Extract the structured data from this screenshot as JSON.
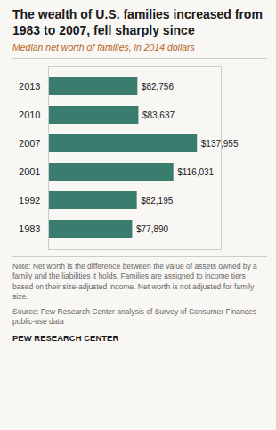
{
  "chart_data": {
    "type": "bar",
    "orientation": "horizontal",
    "title": "The wealth of U.S. families increased from 1983 to 2007, fell sharply since",
    "subtitle": "Median net worth of families, in 2014 dollars",
    "categories": [
      "2013",
      "2010",
      "2007",
      "2001",
      "1992",
      "1983"
    ],
    "values": [
      82756,
      83637,
      137955,
      116031,
      82195,
      77890
    ],
    "value_labels": [
      "$82,756",
      "$83,637",
      "$137,955",
      "$116,031",
      "$82,195",
      "$77,890"
    ],
    "data_labels": true,
    "color": "#3a7d6e",
    "xlim": [
      0,
      160000
    ],
    "tick_labels": "y",
    "grid": false,
    "annotations": [
      "Note: Net worth is the difference between the value of assets owned by a family and the liabilities it holds. Families are assigned to income tiers based on their size-adjusted income. Net worth is not adjusted for family size.",
      "Source: Pew Research Center analysis of Survey of Consumer Finances public-use data",
      "PEW RESEARCH CENTER"
    ]
  }
}
